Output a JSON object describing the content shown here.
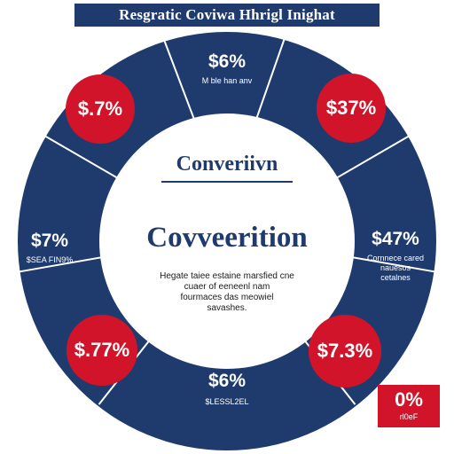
{
  "title": "Resgratic Coviwa Hhrigl Inighat",
  "hub": {
    "heading": "Converiivn",
    "main": "Covveerition",
    "body": "Hegate taiee estaine marsfied cne\ncuaer of eeneenl nam\nfourmaces das meowiel\nsavashes."
  },
  "segments": [
    {
      "value": "$6%",
      "caption": "M ble han anv"
    },
    {
      "value": "$47%",
      "caption": "Cornnece cared\nnauesos\ncetalnes"
    },
    {
      "value": "$6%",
      "caption": "$LESSL2EL"
    },
    {
      "value": "$7%",
      "caption": "$SEA FIN9%"
    }
  ],
  "badges": [
    {
      "value": "$.7%"
    },
    {
      "value": "$37%"
    },
    {
      "value": "$7.3%"
    },
    {
      "value": "$.77%"
    }
  ],
  "corner": {
    "value": "0%",
    "caption": "rl0eF"
  },
  "colors": {
    "navy": "#1f3b6e",
    "red": "#d2142a",
    "white": "#ffffff"
  }
}
